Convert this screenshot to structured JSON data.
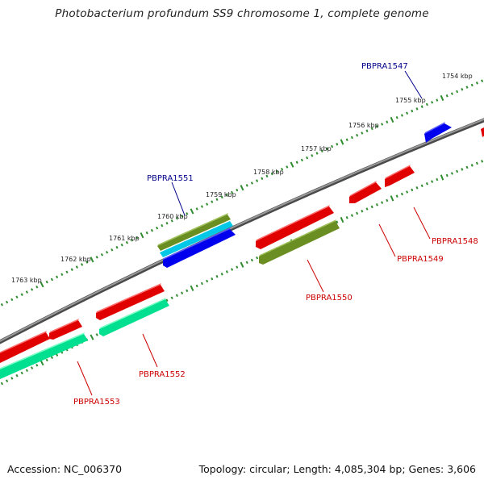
{
  "title": "Photobacterium profundum SS9 chromosome 1, complete genome",
  "footer": {
    "accession": "Accession: NC_006370",
    "summary": "Topology: circular; Length: 4,085,304 bp; Genes: 3,606"
  },
  "colors": {
    "backbone": "#7a7a7a",
    "ticks": "#2e8b2e",
    "forward_label": "#00008b",
    "reverse_label": "#cc0000"
  },
  "ticks": [
    {
      "label": "1754 kbp"
    },
    {
      "label": "1755 kbp"
    },
    {
      "label": "1756 kbp"
    },
    {
      "label": "1757 kbp"
    },
    {
      "label": "1758 kbp"
    },
    {
      "label": "1759 kbp"
    },
    {
      "label": "1760 kbp"
    },
    {
      "label": "1761 kbp"
    },
    {
      "label": "1762 kbp"
    },
    {
      "label": "1763 kbp"
    }
  ],
  "labels": [
    {
      "name": "PBPRA1547",
      "color": "#00008b"
    },
    {
      "name": "PBPRA1548",
      "color": "#cc0000"
    },
    {
      "name": "PBPRA1549",
      "color": "#cc0000"
    },
    {
      "name": "PBPRA1550",
      "color": "#cc0000"
    },
    {
      "name": "PBPRA1551",
      "color": "#00008b"
    },
    {
      "name": "PBPRA1552",
      "color": "#cc0000"
    },
    {
      "name": "PBPRA1553",
      "color": "#cc0000"
    }
  ]
}
